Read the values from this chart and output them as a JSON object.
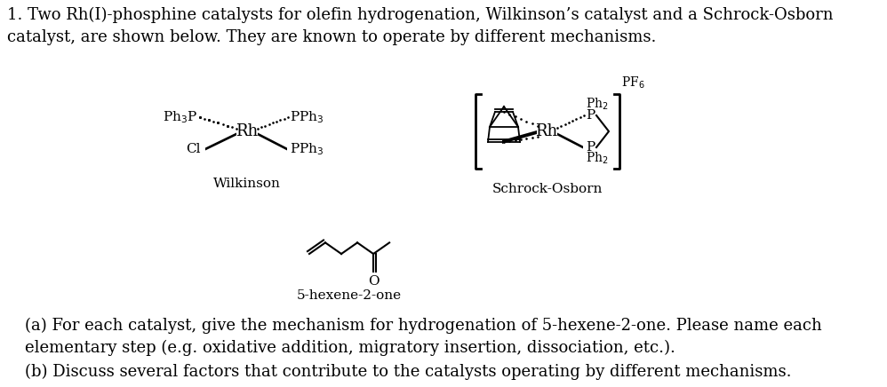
{
  "background_color": "#ffffff",
  "title_text": "1. Two Rh(I)-phosphine catalysts for olefin hydrogenation, Wilkinson’s catalyst and a Schrock-Osborn\ncatalyst, are shown below. They are known to operate by different mechanisms.",
  "wilkinson_label": "Wilkinson",
  "schrock_label": "Schrock-Osborn",
  "substrate_label": "5-hexene-2-one",
  "part_a": "(a) For each catalyst, give the mechanism for hydrogenation of 5-hexene-2-one. Please name each\nelementary step (e.g. oxidative addition, migratory insertion, dissociation, etc.).",
  "part_b": "(b) Discuss several factors that contribute to the catalysts operating by different mechanisms.",
  "font_size_body": 13,
  "font_size_label": 11,
  "font_size_small": 9,
  "fig_width": 9.98,
  "fig_height": 4.36,
  "dpi": 100
}
